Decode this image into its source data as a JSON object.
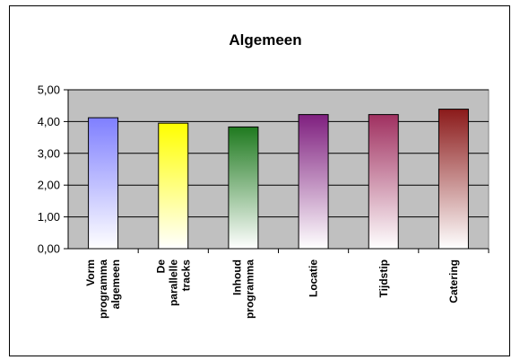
{
  "chart_data": {
    "type": "bar",
    "title": "Algemeen",
    "xlabel": "",
    "ylabel": "",
    "ylim": [
      0,
      5
    ],
    "y_ticks": [
      "0,00",
      "1,00",
      "2,00",
      "3,00",
      "4,00",
      "5,00"
    ],
    "categories": [
      [
        "Vorm",
        "programma",
        "algemeen"
      ],
      [
        "De",
        "parallelle",
        "tracks"
      ],
      [
        "Inhoud",
        "programma"
      ],
      [
        "Locatie"
      ],
      [
        "Tijdstip"
      ],
      [
        "Catering"
      ]
    ],
    "values": [
      4.12,
      3.95,
      3.83,
      4.22,
      4.22,
      4.39
    ],
    "bar_colors": [
      "#7f7fff",
      "#ffff00",
      "#1f7a1f",
      "#7f1f7f",
      "#a03060",
      "#8b1a1a"
    ],
    "plot_background": "#c0c0c0",
    "grid": true,
    "legend": "none"
  }
}
